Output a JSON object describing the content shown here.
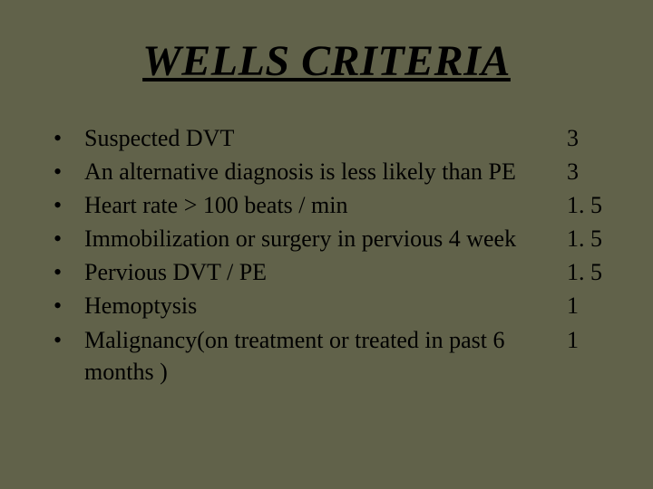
{
  "title": "WELLS CRITERIA",
  "background_color": "#61624a",
  "text_color": "#000000",
  "title_fontsize": 48,
  "body_fontsize": 26,
  "bullet_char": "•",
  "items": [
    {
      "label": "Suspected DVT",
      "score": "3"
    },
    {
      "label": "An alternative diagnosis is less likely than PE",
      "score": "3"
    },
    {
      "label": "Heart rate > 100 beats / min",
      "score": "1. 5"
    },
    {
      "label": "Immobilization or surgery in pervious 4 week",
      "score": "1. 5"
    },
    {
      "label": "Pervious DVT / PE",
      "score": "1. 5"
    },
    {
      "label": "Hemoptysis",
      "score": "1"
    },
    {
      "label": "Malignancy(on treatment or treated in past 6 months )",
      "score": "1"
    }
  ]
}
